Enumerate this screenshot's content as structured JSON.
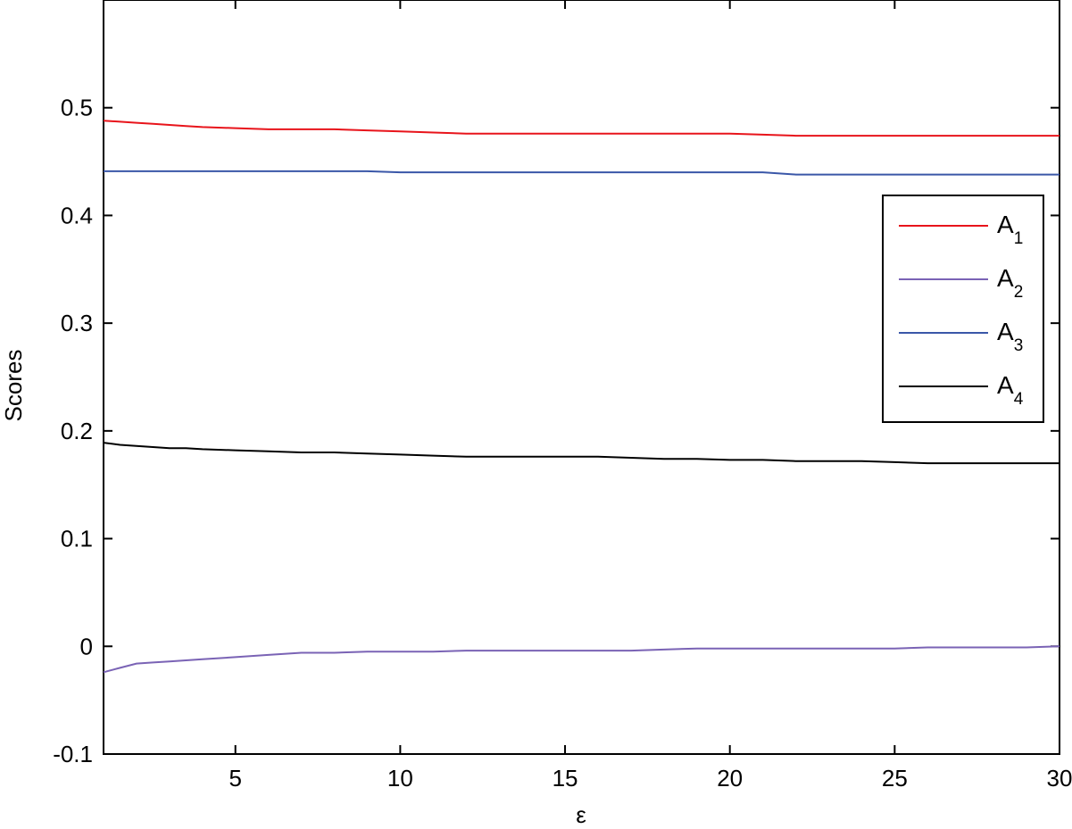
{
  "chart_data": {
    "type": "line",
    "title": "",
    "xlabel": "ε",
    "ylabel": "Scores",
    "xlim": [
      1,
      30
    ],
    "ylim": [
      -0.1,
      0.6
    ],
    "xticks": [
      5,
      10,
      15,
      20,
      25,
      30
    ],
    "yticks": [
      -0.1,
      0,
      0.1,
      0.2,
      0.3,
      0.4,
      0.5
    ],
    "ytick_labels": [
      "-0.1",
      "0",
      "0.1",
      "0.2",
      "0.3",
      "0.4",
      "0.5"
    ],
    "xtick_labels": [
      "5",
      "10",
      "15",
      "20",
      "25",
      "30"
    ],
    "grid": false,
    "legend_position": "right",
    "x": [
      1,
      1.5,
      2,
      2.5,
      3,
      3.5,
      4,
      5,
      6,
      7,
      8,
      9,
      10,
      11,
      12,
      13,
      14,
      15,
      16,
      17,
      18,
      19,
      20,
      21,
      22,
      23,
      24,
      25,
      26,
      27,
      28,
      29,
      30
    ],
    "series": [
      {
        "name": "A",
        "subscript": "1",
        "color": "#e8141b",
        "values": [
          0.488,
          0.487,
          0.486,
          0.485,
          0.484,
          0.483,
          0.482,
          0.481,
          0.48,
          0.48,
          0.48,
          0.479,
          0.478,
          0.477,
          0.476,
          0.476,
          0.476,
          0.476,
          0.476,
          0.476,
          0.476,
          0.476,
          0.476,
          0.475,
          0.474,
          0.474,
          0.474,
          0.474,
          0.474,
          0.474,
          0.474,
          0.474,
          0.474
        ]
      },
      {
        "name": "A",
        "subscript": "2",
        "color": "#7a63b5",
        "values": [
          -0.024,
          -0.02,
          -0.016,
          -0.015,
          -0.014,
          -0.013,
          -0.012,
          -0.01,
          -0.008,
          -0.006,
          -0.006,
          -0.005,
          -0.005,
          -0.005,
          -0.004,
          -0.004,
          -0.004,
          -0.004,
          -0.004,
          -0.004,
          -0.003,
          -0.002,
          -0.002,
          -0.002,
          -0.002,
          -0.002,
          -0.002,
          -0.002,
          -0.001,
          -0.001,
          -0.001,
          -0.001,
          0.0
        ]
      },
      {
        "name": "A",
        "subscript": "3",
        "color": "#3a57a8",
        "values": [
          0.441,
          0.441,
          0.441,
          0.441,
          0.441,
          0.441,
          0.441,
          0.441,
          0.441,
          0.441,
          0.441,
          0.441,
          0.44,
          0.44,
          0.44,
          0.44,
          0.44,
          0.44,
          0.44,
          0.44,
          0.44,
          0.44,
          0.44,
          0.44,
          0.438,
          0.438,
          0.438,
          0.438,
          0.438,
          0.438,
          0.438,
          0.438,
          0.438
        ]
      },
      {
        "name": "A",
        "subscript": "4",
        "color": "#000000",
        "values": [
          0.189,
          0.187,
          0.186,
          0.185,
          0.184,
          0.184,
          0.183,
          0.182,
          0.181,
          0.18,
          0.18,
          0.179,
          0.178,
          0.177,
          0.176,
          0.176,
          0.176,
          0.176,
          0.176,
          0.175,
          0.174,
          0.174,
          0.173,
          0.173,
          0.172,
          0.172,
          0.172,
          0.171,
          0.17,
          0.17,
          0.17,
          0.17,
          0.17
        ]
      }
    ]
  }
}
